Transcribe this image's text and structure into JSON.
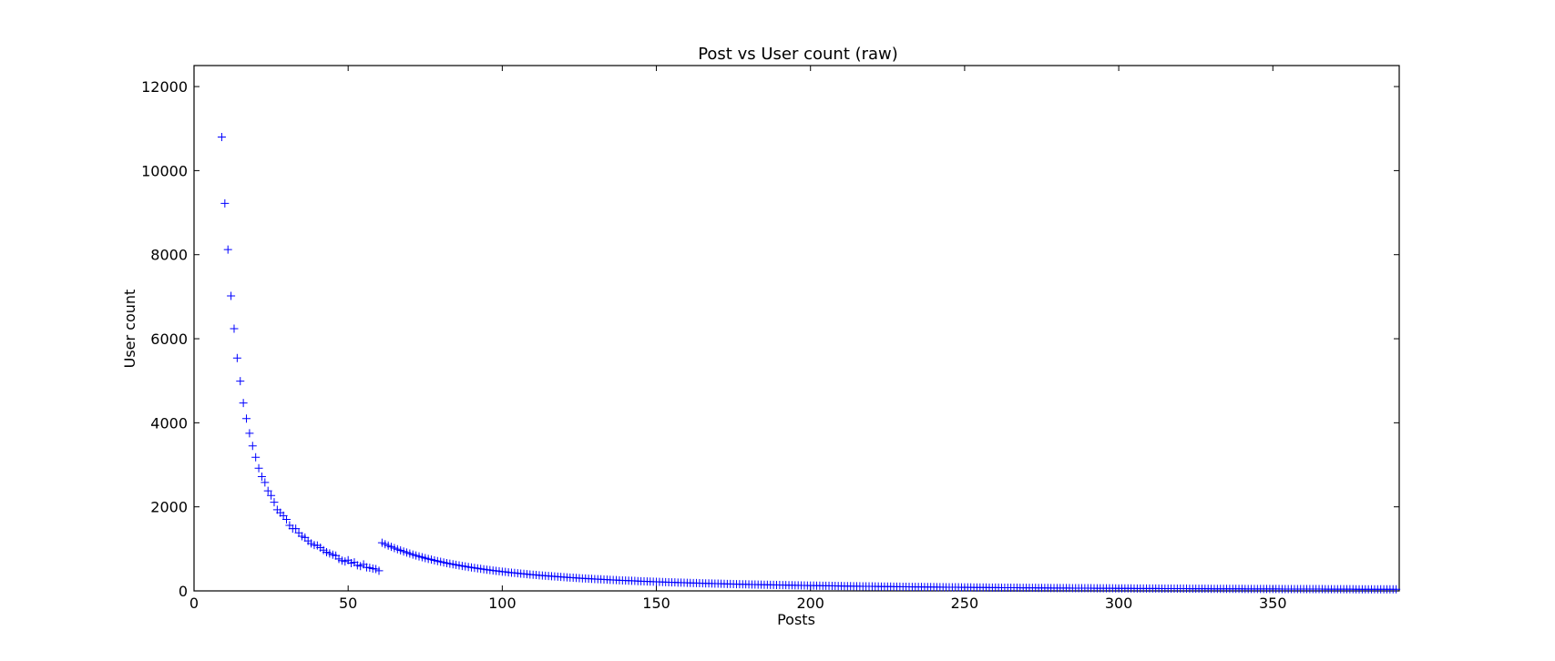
{
  "chart_data": {
    "type": "scatter",
    "title": "Post vs User count (raw)",
    "xlabel": "Posts",
    "ylabel": "User count",
    "xlim": [
      0,
      391
    ],
    "ylim": [
      0,
      12500
    ],
    "xticks": [
      0,
      50,
      100,
      150,
      200,
      250,
      300,
      350
    ],
    "yticks": [
      0,
      2000,
      4000,
      6000,
      8000,
      10000,
      12000
    ],
    "grid": false,
    "marker": "+",
    "marker_color": "#0000ff",
    "head": [
      [
        9,
        10800
      ],
      [
        10,
        9220
      ],
      [
        11,
        8120
      ],
      [
        12,
        7020
      ],
      [
        13,
        6240
      ],
      [
        14,
        5540
      ],
      [
        15,
        4990
      ],
      [
        16,
        4470
      ],
      [
        17,
        4100
      ],
      [
        18,
        3750
      ],
      [
        19,
        3450
      ],
      [
        20,
        3180
      ],
      [
        21,
        2920
      ],
      [
        22,
        2720
      ],
      [
        23,
        2580
      ],
      [
        24,
        2380
      ],
      [
        25,
        2270
      ],
      [
        26,
        2110
      ],
      [
        27,
        1930
      ],
      [
        28,
        1860
      ],
      [
        29,
        1790
      ],
      [
        30,
        1700
      ],
      [
        31,
        1560
      ],
      [
        32,
        1480
      ],
      [
        33,
        1480
      ],
      [
        34,
        1380
      ],
      [
        35,
        1300
      ],
      [
        36,
        1270
      ],
      [
        37,
        1190
      ],
      [
        38,
        1130
      ],
      [
        39,
        1090
      ],
      [
        40,
        1080
      ],
      [
        41,
        1030
      ],
      [
        42,
        970
      ],
      [
        43,
        920
      ],
      [
        44,
        890
      ],
      [
        45,
        860
      ],
      [
        46,
        840
      ],
      [
        47,
        760
      ],
      [
        48,
        720
      ],
      [
        49,
        700
      ],
      [
        50,
        730
      ],
      [
        51,
        660
      ],
      [
        52,
        680
      ],
      [
        53,
        610
      ],
      [
        54,
        590
      ],
      [
        55,
        630
      ],
      [
        56,
        560
      ],
      [
        57,
        550
      ],
      [
        58,
        530
      ],
      [
        59,
        520
      ],
      [
        60,
        480
      ]
    ],
    "tail_curve": {
      "formula": "y = 2300000 / x^1.85",
      "x_range": [
        61,
        390
      ]
    }
  }
}
